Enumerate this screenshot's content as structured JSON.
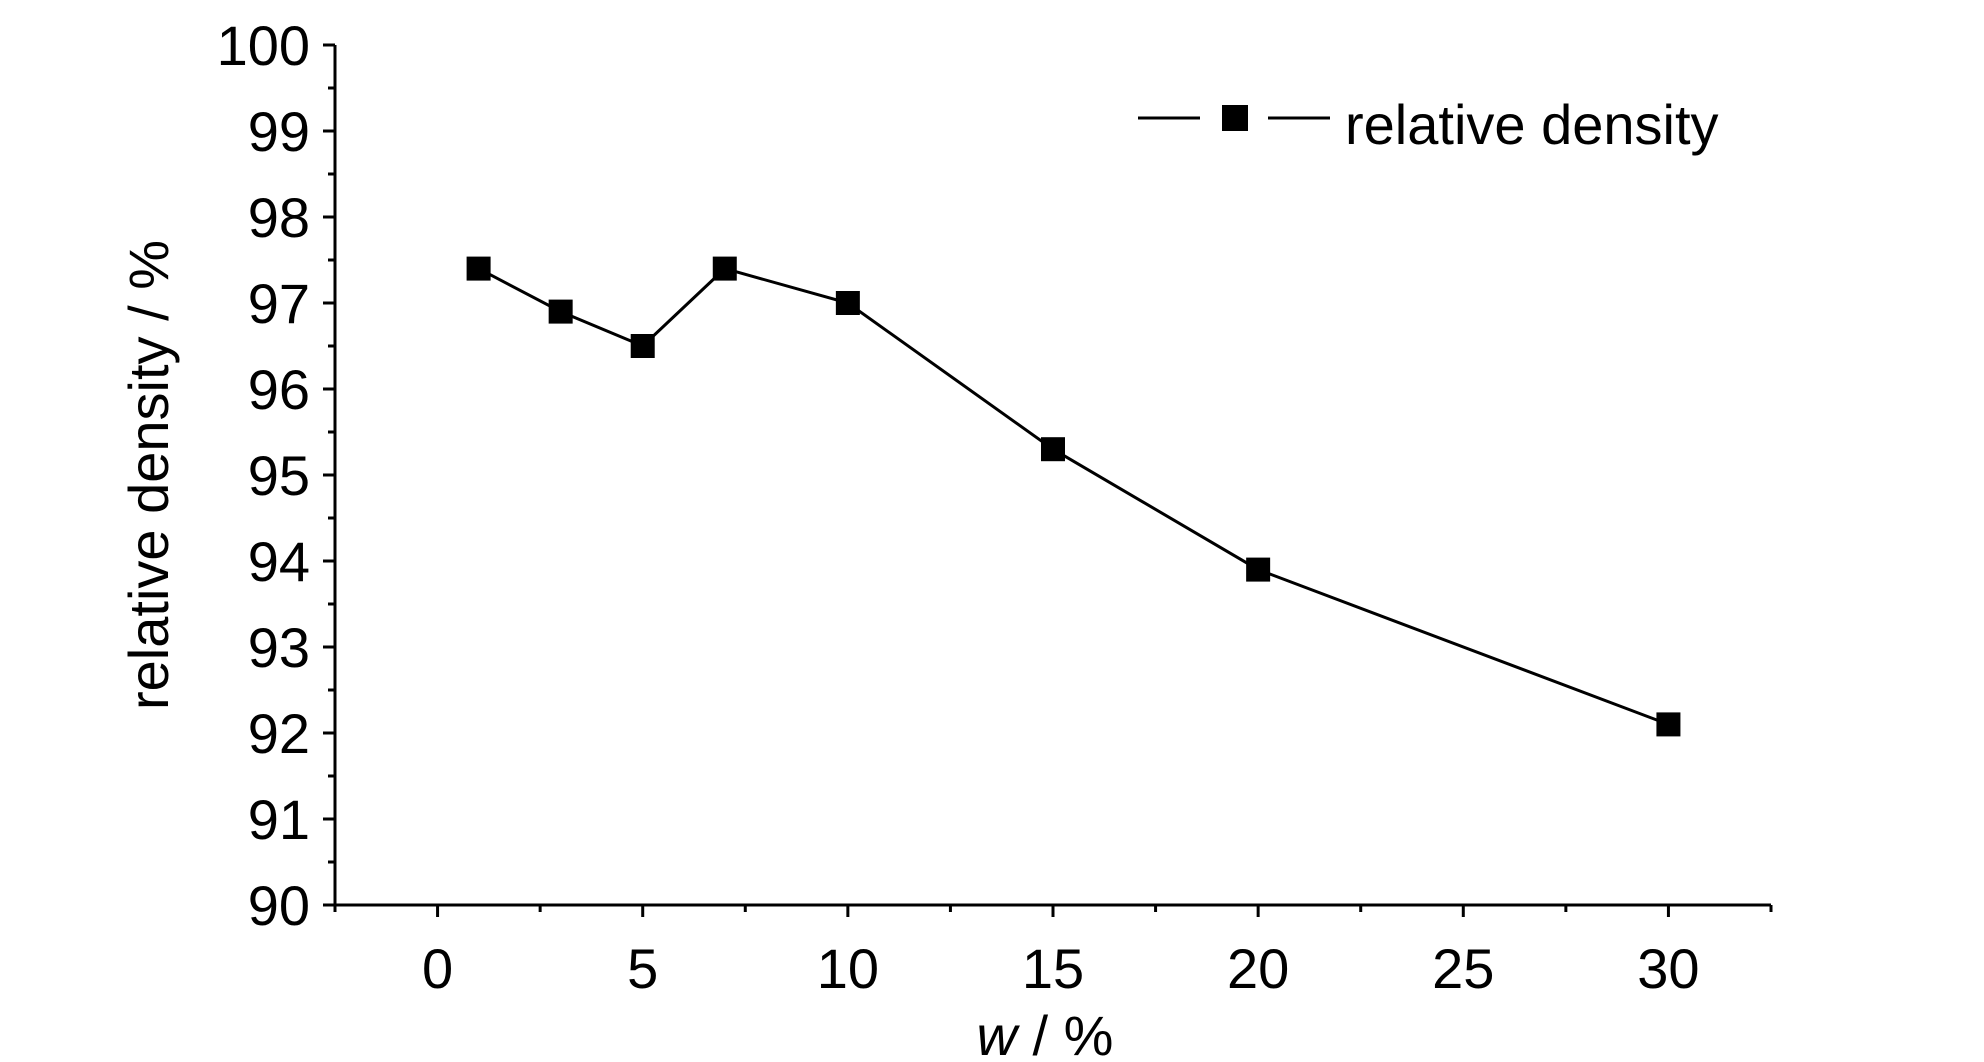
{
  "chart_data": {
    "type": "line",
    "xlabel": "w / %",
    "ylabel": "relative density / %",
    "xlim": [
      -2.5,
      32.5
    ],
    "ylim": [
      90,
      100
    ],
    "x_ticks": [
      0,
      5,
      10,
      15,
      20,
      25,
      30
    ],
    "y_ticks": [
      90,
      91,
      92,
      93,
      94,
      95,
      96,
      97,
      98,
      99,
      100
    ],
    "grid": false,
    "legend_position": "top-right",
    "series": [
      {
        "name": "relative density",
        "color": "#000000",
        "marker": "square",
        "x": [
          1,
          3,
          5,
          7,
          10,
          15,
          20,
          30
        ],
        "y": [
          97.4,
          96.9,
          96.5,
          97.4,
          97.0,
          95.3,
          93.9,
          92.1
        ]
      }
    ]
  }
}
